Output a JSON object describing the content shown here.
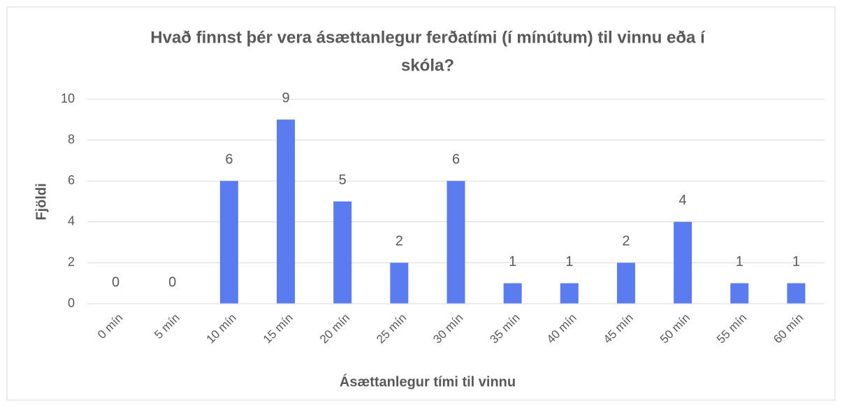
{
  "chart_data": {
    "type": "bar",
    "title": "Hvað finnst þér vera ásættanlegur ferðatími (í mínútum) til vinnu eða í skóla?",
    "x_label": "Ásættanlegur tími til vinnu",
    "y_label": "Fjöldi",
    "categories": [
      "0 mín",
      "5 mín",
      "10 mín",
      "15 mín",
      "20 mín",
      "25 mín",
      "30 mín",
      "35 mín",
      "40 mín",
      "45 mín",
      "50 mín",
      "55 mín",
      "60 mín"
    ],
    "values": [
      0,
      0,
      6,
      9,
      5,
      2,
      6,
      1,
      1,
      2,
      4,
      1,
      1
    ],
    "color": "#5b7cf0",
    "ylim": [
      0,
      10
    ],
    "yticks": [
      0,
      2,
      4,
      6,
      8,
      10
    ],
    "grid": true
  }
}
